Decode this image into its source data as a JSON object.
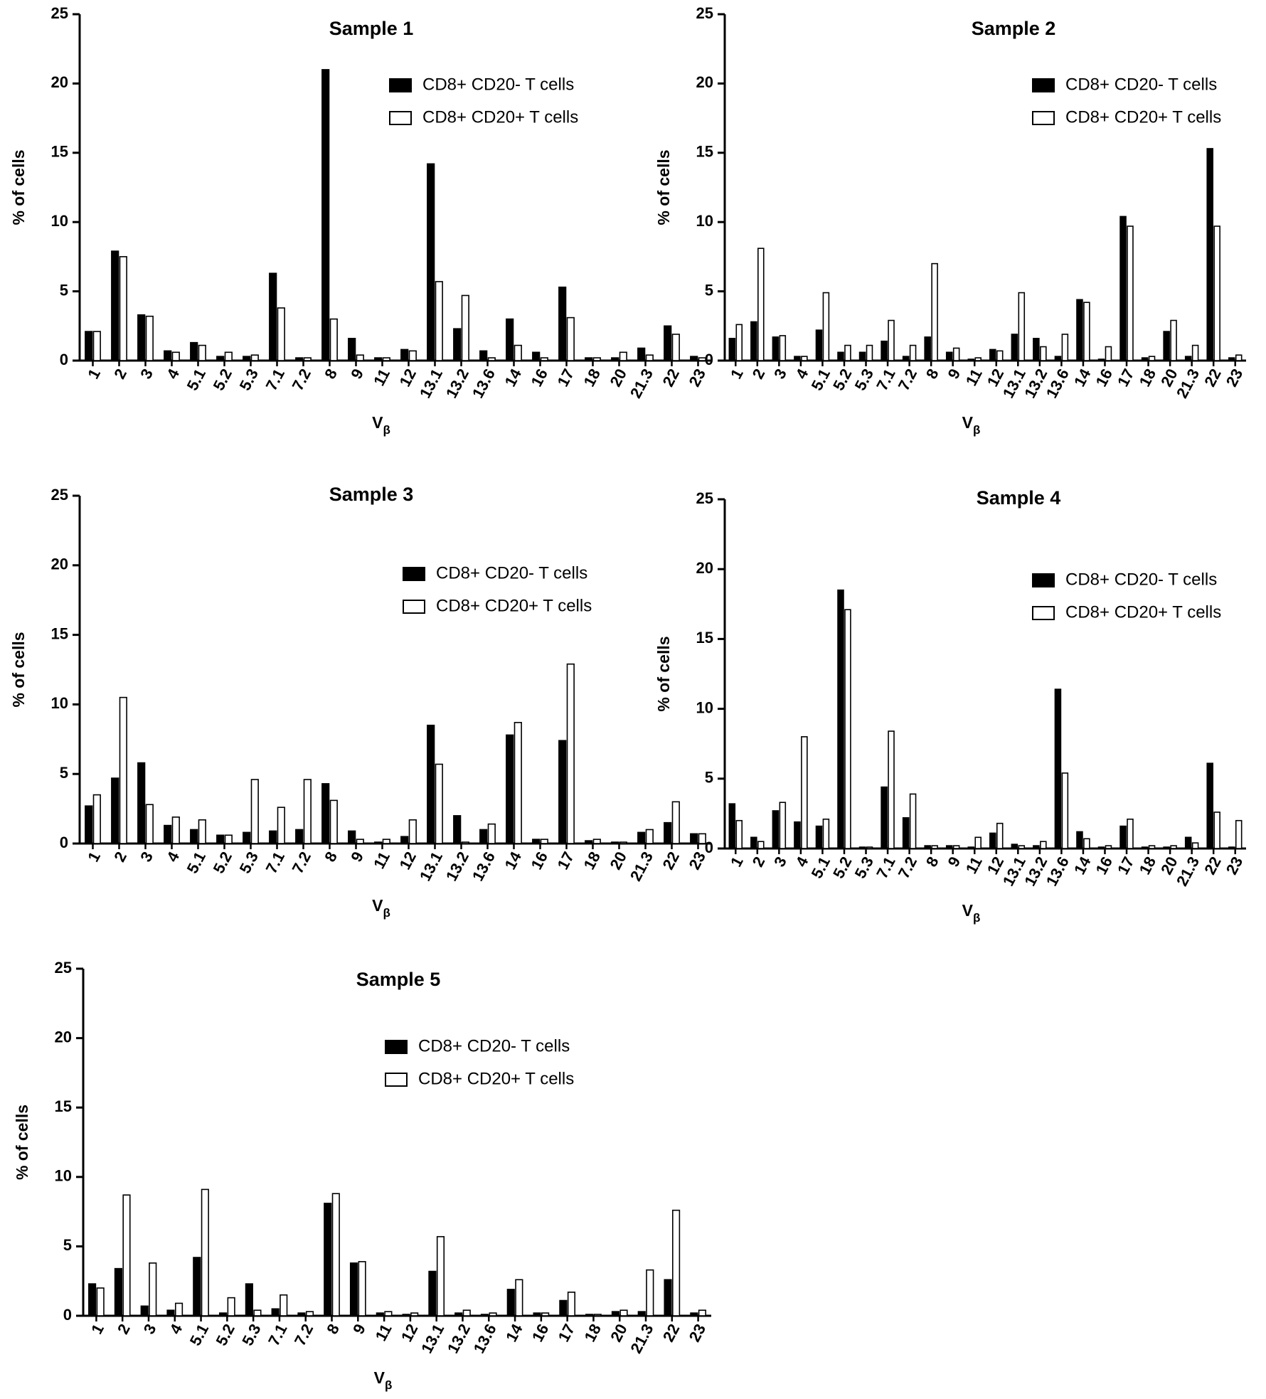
{
  "chart_data": [
    {
      "type": "bar",
      "title": "Sample 1",
      "xlabel": "V",
      "xlabel_sub": "β",
      "ylabel": "% of cells",
      "ylim": [
        0,
        25
      ],
      "yticks": [
        0,
        5,
        10,
        15,
        20,
        25
      ],
      "legend_position": "top-right",
      "categories": [
        "1",
        "2",
        "3",
        "4",
        "5.1",
        "5.2",
        "5.3",
        "7.1",
        "7.2",
        "8",
        "9",
        "11",
        "12",
        "13.1",
        "13.2",
        "13.6",
        "14",
        "16",
        "17",
        "18",
        "20",
        "21.3",
        "22",
        "23"
      ],
      "series": [
        {
          "name": "CD8+ CD20- T cells",
          "color": "#000000",
          "values": [
            2.1,
            7.9,
            3.3,
            0.7,
            1.3,
            0.3,
            0.3,
            6.3,
            0.2,
            21.0,
            1.6,
            0.2,
            0.8,
            14.2,
            2.3,
            0.7,
            3.0,
            0.6,
            5.3,
            0.2,
            0.2,
            0.9,
            2.5,
            0.3
          ]
        },
        {
          "name": "CD8+ CD20+ T cells",
          "color": "#ffffff",
          "values": [
            2.1,
            7.5,
            3.2,
            0.6,
            1.1,
            0.6,
            0.4,
            3.8,
            0.2,
            3.0,
            0.4,
            0.2,
            0.7,
            5.7,
            4.7,
            0.2,
            1.1,
            0.2,
            3.1,
            0.2,
            0.6,
            0.4,
            1.9,
            0.2
          ]
        }
      ]
    },
    {
      "type": "bar",
      "title": "Sample 2",
      "xlabel": "V",
      "xlabel_sub": "β",
      "ylabel": "% of cells",
      "ylim": [
        0,
        25
      ],
      "yticks": [
        0,
        5,
        10,
        15,
        20,
        25
      ],
      "legend_position": "top-right",
      "categories": [
        "1",
        "2",
        "3",
        "4",
        "5.1",
        "5.2",
        "5.3",
        "7.1",
        "7.2",
        "8",
        "9",
        "11",
        "12",
        "13.1",
        "13.2",
        "13.6",
        "14",
        "16",
        "17",
        "18",
        "20",
        "21.3",
        "22",
        "23"
      ],
      "series": [
        {
          "name": "CD8+ CD20- T cells",
          "color": "#000000",
          "values": [
            1.6,
            2.8,
            1.7,
            0.3,
            2.2,
            0.6,
            0.6,
            1.4,
            0.3,
            1.7,
            0.6,
            0.1,
            0.8,
            1.9,
            1.6,
            0.3,
            4.4,
            0.1,
            10.4,
            0.2,
            2.1,
            0.3,
            15.3,
            0.2
          ]
        },
        {
          "name": "CD8+ CD20+ T cells",
          "color": "#ffffff",
          "values": [
            2.6,
            8.1,
            1.8,
            0.3,
            4.9,
            1.1,
            1.1,
            2.9,
            1.1,
            7.0,
            0.9,
            0.2,
            0.7,
            4.9,
            1.0,
            1.9,
            4.2,
            1.0,
            9.7,
            0.3,
            2.9,
            1.1,
            9.7,
            0.4
          ]
        }
      ]
    },
    {
      "type": "bar",
      "title": "Sample 3",
      "xlabel": "V",
      "xlabel_sub": "β",
      "ylabel": "% of cells",
      "ylim": [
        0,
        25
      ],
      "yticks": [
        0,
        5,
        10,
        15,
        20,
        25
      ],
      "legend_position": "top-right",
      "categories": [
        "1",
        "2",
        "3",
        "4",
        "5.1",
        "5.2",
        "5.3",
        "7.1",
        "7.2",
        "8",
        "9",
        "11",
        "12",
        "13.1",
        "13.2",
        "13.6",
        "14",
        "16",
        "17",
        "18",
        "20",
        "21.3",
        "22",
        "23"
      ],
      "series": [
        {
          "name": "CD8+ CD20- T cells",
          "color": "#000000",
          "values": [
            2.7,
            4.7,
            5.8,
            1.3,
            1.0,
            0.6,
            0.8,
            0.9,
            1.0,
            4.3,
            0.9,
            0.1,
            0.5,
            8.5,
            2.0,
            1.0,
            7.8,
            0.3,
            7.4,
            0.2,
            0.1,
            0.8,
            1.5,
            0.7
          ]
        },
        {
          "name": "CD8+ CD20+ T cells",
          "color": "#ffffff",
          "values": [
            3.5,
            10.5,
            2.8,
            1.9,
            1.7,
            0.6,
            4.6,
            2.6,
            4.6,
            3.1,
            0.3,
            0.3,
            1.7,
            5.7,
            0.1,
            1.4,
            8.7,
            0.3,
            12.9,
            0.3,
            0.1,
            1.0,
            3.0,
            0.7
          ]
        }
      ]
    },
    {
      "type": "bar",
      "title": "Sample 4",
      "xlabel": "V",
      "xlabel_sub": "β",
      "ylabel": "% of cells",
      "ylim": [
        0,
        25
      ],
      "yticks": [
        0,
        5,
        10,
        15,
        20,
        25
      ],
      "legend_position": "top-right",
      "categories": [
        "1",
        "2",
        "3",
        "4",
        "5.1",
        "5.2",
        "5.3",
        "7.1",
        "7.2",
        "8",
        "9",
        "11",
        "12",
        "13.1",
        "13.2",
        "13.6",
        "14",
        "16",
        "17",
        "18",
        "20",
        "21.3",
        "22",
        "23"
      ],
      "series": [
        {
          "name": "CD8+ CD20- T cells",
          "color": "#000000",
          "values": [
            3.2,
            0.8,
            2.7,
            1.9,
            1.6,
            18.5,
            0.1,
            4.4,
            2.2,
            0.2,
            0.2,
            0.1,
            1.1,
            0.3,
            0.2,
            11.4,
            1.2,
            0.1,
            1.6,
            0.1,
            0.1,
            0.8,
            6.1,
            0.1
          ]
        },
        {
          "name": "CD8+ CD20+ T cells",
          "color": "#ffffff",
          "values": [
            2.0,
            0.5,
            3.3,
            8.0,
            2.1,
            17.1,
            0.1,
            8.4,
            3.9,
            0.2,
            0.2,
            0.8,
            1.8,
            0.2,
            0.5,
            5.4,
            0.7,
            0.2,
            2.1,
            0.2,
            0.2,
            0.4,
            2.6,
            2.0
          ]
        }
      ]
    },
    {
      "type": "bar",
      "title": "Sample 5",
      "xlabel": "V",
      "xlabel_sub": "β",
      "ylabel": "% of cells",
      "ylim": [
        0,
        25
      ],
      "yticks": [
        0,
        5,
        10,
        15,
        20,
        25
      ],
      "legend_position": "top-right",
      "categories": [
        "1",
        "2",
        "3",
        "4",
        "5.1",
        "5.2",
        "5.3",
        "7.1",
        "7.2",
        "8",
        "9",
        "11",
        "12",
        "13.1",
        "13.2",
        "13.6",
        "14",
        "16",
        "17",
        "18",
        "20",
        "21.3",
        "22",
        "23"
      ],
      "series": [
        {
          "name": "CD8+ CD20- T cells",
          "color": "#000000",
          "values": [
            2.3,
            3.4,
            0.7,
            0.4,
            4.2,
            0.2,
            2.3,
            0.5,
            0.2,
            8.1,
            3.8,
            0.2,
            0.1,
            3.2,
            0.2,
            0.1,
            1.9,
            0.2,
            1.1,
            0.1,
            0.3,
            0.3,
            2.6,
            0.2
          ]
        },
        {
          "name": "CD8+ CD20+ T cells",
          "color": "#ffffff",
          "values": [
            2.0,
            8.7,
            3.8,
            0.9,
            9.1,
            1.3,
            0.4,
            1.5,
            0.3,
            8.8,
            3.9,
            0.3,
            0.2,
            5.7,
            0.4,
            0.2,
            2.6,
            0.2,
            1.7,
            0.1,
            0.4,
            3.3,
            7.6,
            0.4
          ]
        }
      ]
    }
  ]
}
